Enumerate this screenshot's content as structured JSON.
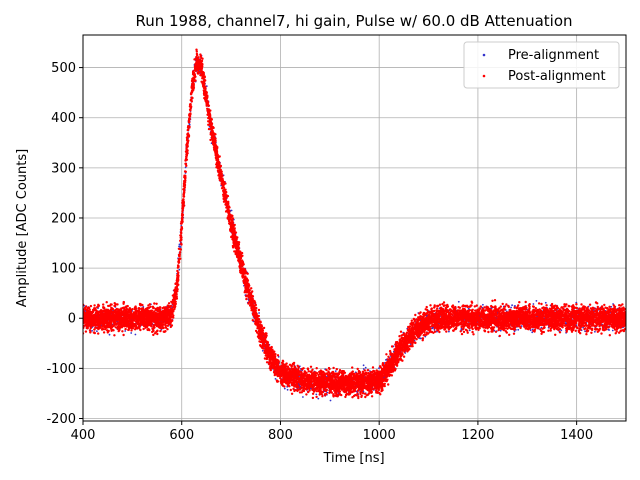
{
  "chart_data": {
    "type": "scatter",
    "title": "Run 1988, channel7, hi gain, Pulse w/ 60.0 dB Attenuation",
    "xlabel": "Time [ns]",
    "ylabel": "Amplitude [ADC Counts]",
    "xlim": [
      400,
      1500
    ],
    "ylim": [
      -205,
      565
    ],
    "xticks": [
      400,
      600,
      800,
      1000,
      1200,
      1400
    ],
    "yticks": [
      -200,
      -100,
      0,
      100,
      200,
      300,
      400,
      500
    ],
    "grid": true,
    "legend": {
      "placement": "top-right"
    },
    "series": [
      {
        "name": "Pre-alignment",
        "color": "#3333cc",
        "marker": "dot",
        "x": [
          400,
          560,
          580,
          590,
          600,
          610,
          620,
          630,
          640,
          650,
          660,
          680,
          700,
          720,
          740,
          760,
          780,
          800,
          850,
          900,
          950,
          1000,
          1025,
          1050,
          1075,
          1100,
          1150,
          1200,
          1300,
          1400,
          1500
        ],
        "y": [
          0,
          0,
          10,
          60,
          180,
          330,
          450,
          510,
          500,
          440,
          380,
          280,
          190,
          110,
          40,
          -30,
          -80,
          -110,
          -125,
          -130,
          -130,
          -125,
          -90,
          -50,
          -20,
          -5,
          0,
          0,
          0,
          0,
          0
        ]
      },
      {
        "name": "Post-alignment",
        "color": "#ff0000",
        "marker": "dot",
        "x": [
          400,
          560,
          580,
          590,
          600,
          610,
          620,
          630,
          640,
          650,
          660,
          680,
          700,
          720,
          740,
          760,
          780,
          800,
          850,
          900,
          950,
          1000,
          1025,
          1050,
          1075,
          1100,
          1150,
          1200,
          1300,
          1400,
          1500
        ],
        "y": [
          0,
          0,
          10,
          60,
          180,
          330,
          450,
          510,
          500,
          440,
          380,
          280,
          190,
          110,
          40,
          -30,
          -80,
          -110,
          -125,
          -130,
          -130,
          -125,
          -90,
          -50,
          -20,
          -5,
          0,
          0,
          0,
          0,
          0
        ]
      }
    ]
  }
}
